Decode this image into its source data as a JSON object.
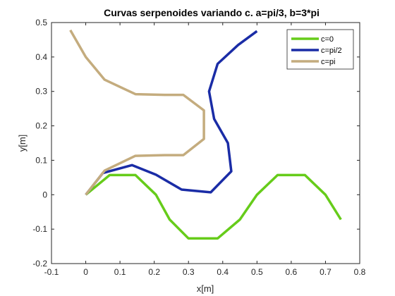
{
  "chart_data": {
    "type": "line",
    "title": "Curvas serpenoides variando c. a=pi/3, b=3*pi",
    "xlabel": "x[m]",
    "ylabel": "y[m]",
    "xlim": [
      -0.1,
      0.8
    ],
    "ylim": [
      -0.2,
      0.5
    ],
    "xticks": [
      "-0.1",
      "0",
      "0.1",
      "0.2",
      "0.3",
      "0.4",
      "0.5",
      "0.6",
      "0.7",
      "0.8"
    ],
    "yticks": [
      "-0.2",
      "-0.1",
      "0",
      "0.1",
      "0.2",
      "0.3",
      "0.4",
      "0.5"
    ],
    "grid": false,
    "legend_position": "top-right",
    "series": [
      {
        "name": "c=0",
        "color": "#66cc1a",
        "x": [
          0,
          0.07,
          0.145,
          0.205,
          0.245,
          0.3,
          0.385,
          0.45,
          0.5,
          0.56,
          0.64,
          0.7,
          0.745
        ],
        "y": [
          0,
          0.057,
          0.057,
          0.0,
          -0.072,
          -0.127,
          -0.127,
          -0.072,
          0.0,
          0.057,
          0.057,
          0.0,
          -0.072
        ]
      },
      {
        "name": "c=pi/2",
        "color": "#1a2ca6",
        "x": [
          0,
          0.05,
          0.135,
          0.205,
          0.28,
          0.365,
          0.425,
          0.415,
          0.375,
          0.36,
          0.385,
          0.445,
          0.5
        ],
        "y": [
          0,
          0.063,
          0.086,
          0.058,
          0.015,
          0.007,
          0.068,
          0.15,
          0.22,
          0.3,
          0.38,
          0.435,
          0.475
        ]
      },
      {
        "name": "c=pi",
        "color": "#c4ac7e",
        "x": [
          0,
          0.055,
          0.145,
          0.23,
          0.285,
          0.345,
          0.345,
          0.285,
          0.23,
          0.145,
          0.055,
          0,
          -0.045
        ],
        "y": [
          0,
          0.07,
          0.113,
          0.115,
          0.115,
          0.162,
          0.245,
          0.29,
          0.29,
          0.292,
          0.334,
          0.4,
          0.478
        ]
      }
    ]
  }
}
